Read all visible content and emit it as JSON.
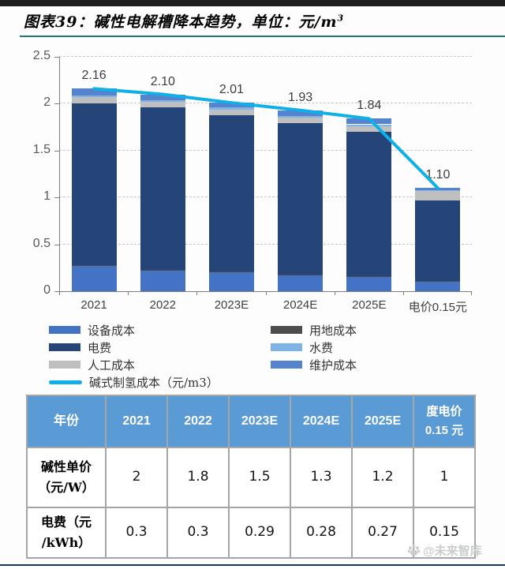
{
  "page": {
    "title": "图表39：碱性电解槽降本趋势，单位：元/m",
    "title_sup": "3",
    "watermark": "@未来智库"
  },
  "colors": {
    "top_bar": "#1E1E1E",
    "title_underline": "#1B7A74",
    "table_header_bg": "#5B9BD5",
    "table_border": "#A6A6A6",
    "bottom_bar": "#17365D",
    "watermark_gray": "#C9CBCC",
    "axis_gray": "#7F7F7F",
    "accent_line": "#0FAFE8"
  },
  "chart_data": {
    "type": "bar",
    "subtype": "stacked-column-with-line",
    "title": "碱性电解槽降本趋势",
    "unit": "元/m3",
    "categories": [
      "2021",
      "2022",
      "2023E",
      "2024E",
      "2025E",
      "电价0.15元"
    ],
    "series": [
      {
        "name": "设备成本",
        "color": "#4472C4",
        "values": [
          0.27,
          0.22,
          0.2,
          0.17,
          0.15,
          0.1
        ]
      },
      {
        "name": "用地成本",
        "color": "#4D4D4D",
        "values": [
          0.01,
          0.01,
          0.01,
          0.01,
          0.01,
          0.01
        ]
      },
      {
        "name": "电费",
        "color": "#254478",
        "values": [
          1.72,
          1.73,
          1.67,
          1.61,
          1.54,
          0.86
        ]
      },
      {
        "name": "人工成本",
        "color": "#BFBFBF",
        "values": [
          0.07,
          0.06,
          0.06,
          0.06,
          0.06,
          0.1
        ]
      },
      {
        "name": "水费",
        "color": "#7FB2E5",
        "values": [
          0.02,
          0.02,
          0.02,
          0.02,
          0.02,
          0.01
        ]
      },
      {
        "name": "维护成本",
        "color": "#5583CE",
        "values": [
          0.07,
          0.06,
          0.05,
          0.06,
          0.06,
          0.02
        ]
      }
    ],
    "line": {
      "name": "碱式制氢成本（元/m3）",
      "color": "#0FAFE8",
      "values": [
        2.16,
        2.1,
        2.01,
        1.93,
        1.84,
        1.1
      ]
    },
    "bar_labels": [
      "2.16",
      "2.10",
      "2.01",
      "1.93",
      "1.84",
      "1.10"
    ],
    "ylim": [
      0,
      2.5
    ],
    "ytick_labels": [
      "0",
      "0.5",
      "1",
      "1.5",
      "2",
      "2.5"
    ],
    "grid": "horizontal-dashed",
    "legend_position": "bottom"
  },
  "legend": {
    "columns": [
      [
        {
          "type": "box",
          "color": "#4472C4",
          "label": "设备成本"
        },
        {
          "type": "box",
          "color": "#254478",
          "label": "电费"
        },
        {
          "type": "box",
          "color": "#BFBFBF",
          "label": "人工成本"
        },
        {
          "type": "line",
          "color": "#0FAFE8",
          "label": "碱式制氢成本（元/m3）"
        }
      ],
      [
        {
          "type": "box",
          "color": "#4D4D4D",
          "label": "用地成本"
        },
        {
          "type": "box",
          "color": "#7FB2E5",
          "label": "水费"
        },
        {
          "type": "box",
          "color": "#5583CE",
          "label": "维护成本"
        }
      ]
    ]
  },
  "table": {
    "header": [
      "年份",
      "2021",
      "2022",
      "2023E",
      "2024E",
      "2025E",
      "度电价\n0.15 元"
    ],
    "rows": [
      {
        "label": "碱性单价\n（元/W）",
        "values": [
          "2",
          "1.8",
          "1.5",
          "1.3",
          "1.2",
          "1"
        ]
      },
      {
        "label": "电费（元\n/kWh）",
        "values": [
          "0.3",
          "0.3",
          "0.29",
          "0.28",
          "0.27",
          "0.15"
        ]
      }
    ]
  }
}
